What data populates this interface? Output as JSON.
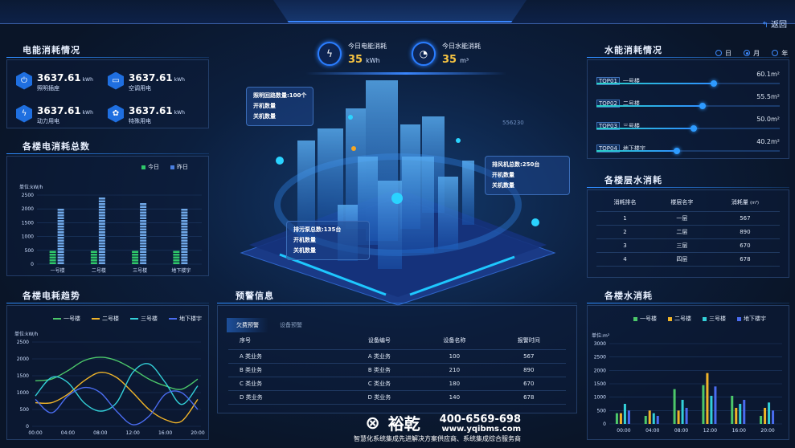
{
  "header": {
    "title": "",
    "back_label": "返回",
    "back_icon": "back-arrow-icon"
  },
  "center_stats": [
    {
      "label": "今日电能消耗",
      "value": "35",
      "unit": "kWh",
      "icon": "power-icon"
    },
    {
      "label": "今日水能消耗",
      "value": "35",
      "unit": "m³",
      "icon": "water-meter-icon"
    }
  ],
  "electric": {
    "title": "电能消耗情况",
    "items": [
      {
        "value": "3637.61",
        "unit": "kWh",
        "label": "照明插座",
        "icon": "plug-icon"
      },
      {
        "value": "3637.61",
        "unit": "kWh",
        "label": "空调用电",
        "icon": "air-conditioner-icon"
      },
      {
        "value": "3637.61",
        "unit": "kWh",
        "label": "动力用电",
        "icon": "bolt-icon"
      },
      {
        "value": "3637.61",
        "unit": "kWh",
        "label": "特殊用电",
        "icon": "special-icon"
      }
    ]
  },
  "callouts": [
    {
      "lines": [
        "照明回路数量:100个",
        "开机数量",
        "关机数量"
      ]
    },
    {
      "lines": [
        "排风机总数:250台",
        "开机数量",
        "关机数量"
      ]
    },
    {
      "lines": [
        "排污泵总数:135台",
        "开机数量",
        "关机数量"
      ]
    }
  ],
  "map_label": "556230",
  "water": {
    "title": "水能消耗情况",
    "periods": [
      "日",
      "月",
      "年"
    ],
    "selected_period": "月",
    "ranks": [
      {
        "tag": "TOP01",
        "name": "一号楼",
        "value": "60.1m²",
        "percent": 64
      },
      {
        "tag": "TOP02",
        "name": "二号楼",
        "value": "55.5m²",
        "percent": 58
      },
      {
        "tag": "TOP03",
        "name": "三号楼",
        "value": "50.0m²",
        "percent": 53
      },
      {
        "tag": "TOP04",
        "name": "地下楼宇",
        "value": "40.2m²",
        "percent": 44
      }
    ]
  },
  "floor_water": {
    "title": "各楼层水消耗",
    "headers": [
      "消耗排名",
      "楼层名字",
      "消耗量"
    ],
    "unit": "(m³)",
    "rows": [
      [
        "1",
        "一层",
        "567"
      ],
      [
        "2",
        "二层",
        "890"
      ],
      [
        "3",
        "三层",
        "670"
      ],
      [
        "4",
        "四层",
        "678"
      ]
    ]
  },
  "alerts": {
    "title": "预警信息",
    "tabs": [
      "欠费预警",
      "设备预警"
    ],
    "active_tab": "欠费预警",
    "headers": [
      "序号",
      "设备编号",
      "设备名称",
      "报警时间"
    ],
    "rows": [
      [
        "A 类业务",
        "A 类业务",
        "100",
        "567"
      ],
      [
        "B 类业务",
        "B 类业务",
        "210",
        "890"
      ],
      [
        "C 类业务",
        "C 类业务",
        "180",
        "670"
      ],
      [
        "D 类业务",
        "D 类业务",
        "140",
        "678"
      ]
    ]
  },
  "watermark": {
    "brand": "裕乾",
    "phone": "400-6569-698",
    "url": "www.yqibms.com",
    "slogan": "智慧化系统集成先进解决方案供应商、系统集成综合服务商"
  },
  "chart_data": [
    {
      "id": "elec_total",
      "title": "各楼电消耗总数",
      "type": "bar",
      "ylabel": "单位:kW/h",
      "ylim": [
        0,
        2500
      ],
      "yticks": [
        0,
        500,
        1000,
        1500,
        2000,
        2500
      ],
      "categories": [
        "一号楼",
        "二号楼",
        "三号楼",
        "地下楼宇"
      ],
      "series": [
        {
          "name": "今日",
          "color": "#2fc86a",
          "values": [
            500,
            500,
            500,
            500
          ]
        },
        {
          "name": "昨日",
          "color": "#6fa8e8",
          "values": [
            1950,
            2400,
            2150,
            1950
          ]
        }
      ],
      "legend": "top-right"
    },
    {
      "id": "elec_trend",
      "title": "各楼电耗趋势",
      "type": "line",
      "ylabel": "单位:kW/h",
      "ylim": [
        0,
        2500
      ],
      "yticks": [
        0,
        500,
        1000,
        1500,
        2000,
        2500
      ],
      "x": [
        "00:00",
        "02:00",
        "04:00",
        "06:00",
        "08:00",
        "10:00",
        "12:00",
        "14:00",
        "16:00",
        "18:00",
        "20:00"
      ],
      "xticks": [
        "00:00",
        "04:00",
        "08:00",
        "12:00",
        "16:00",
        "20:00"
      ],
      "series": [
        {
          "name": "一号楼",
          "color": "#4cc86a",
          "values": [
            1350,
            1400,
            1650,
            1950,
            2050,
            1950,
            1700,
            1400,
            1200,
            1100,
            1400
          ]
        },
        {
          "name": "二号楼",
          "color": "#f0b429",
          "values": [
            700,
            700,
            950,
            1350,
            1600,
            1450,
            1000,
            500,
            200,
            150,
            800
          ]
        },
        {
          "name": "三号楼",
          "color": "#33d0d8",
          "values": [
            900,
            1450,
            1300,
            700,
            450,
            700,
            1600,
            1850,
            1300,
            650,
            1200
          ]
        },
        {
          "name": "地下楼宇",
          "color": "#4a6cf0",
          "values": [
            800,
            400,
            900,
            1150,
            1000,
            450,
            50,
            300,
            950,
            1000,
            500
          ]
        }
      ],
      "legend": "top"
    },
    {
      "id": "water_bars",
      "title": "各楼水消耗",
      "type": "bar",
      "ylabel": "单位:m²",
      "ylim": [
        0,
        3000
      ],
      "yticks": [
        0,
        500,
        1000,
        1500,
        2000,
        2500,
        3000
      ],
      "categories": [
        "00:00",
        "04:00",
        "08:00",
        "12:00",
        "16:00",
        "20:00"
      ],
      "series": [
        {
          "name": "一号楼",
          "color": "#4cc86a",
          "values": [
            400,
            300,
            1300,
            1450,
            1050,
            300
          ]
        },
        {
          "name": "二号楼",
          "color": "#f0b429",
          "values": [
            400,
            500,
            500,
            1900,
            600,
            600
          ]
        },
        {
          "name": "三号楼",
          "color": "#33d0d8",
          "values": [
            750,
            400,
            900,
            1050,
            750,
            800
          ]
        },
        {
          "name": "地下楼宇",
          "color": "#4a6cf0",
          "values": [
            500,
            300,
            600,
            1400,
            900,
            500
          ]
        }
      ],
      "legend": "top"
    }
  ]
}
